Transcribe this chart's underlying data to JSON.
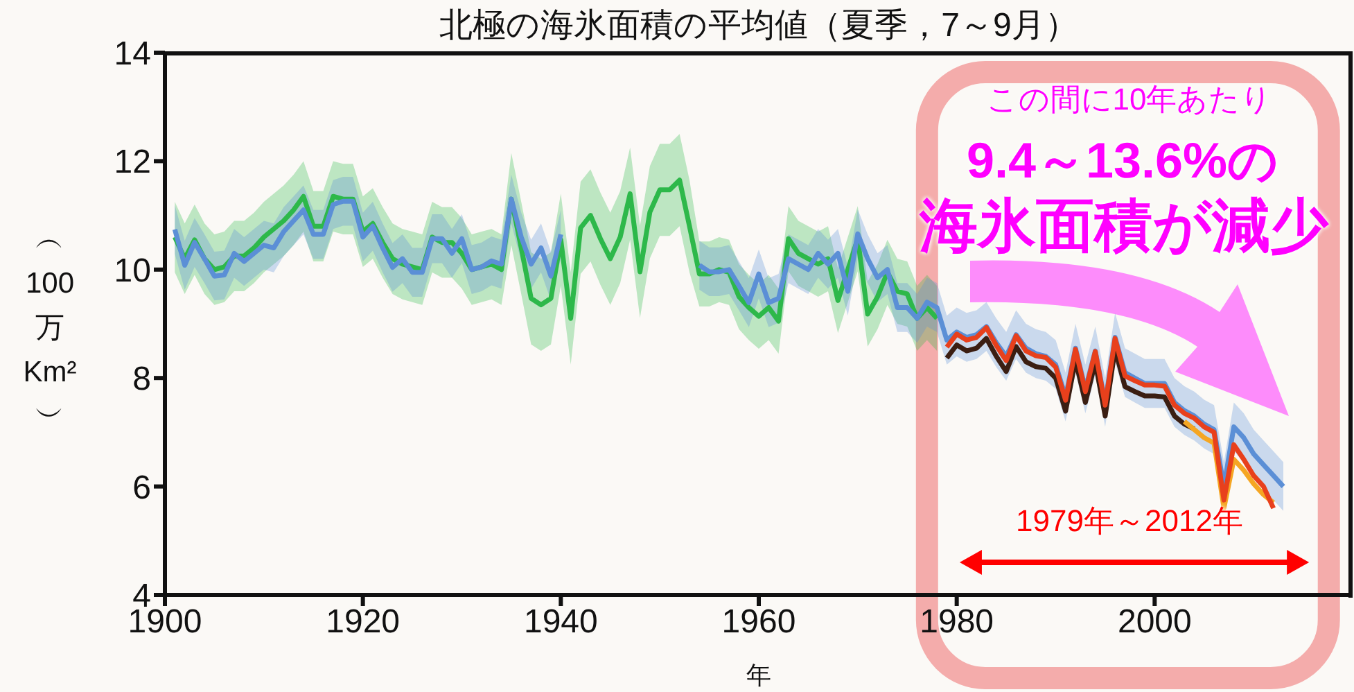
{
  "chart_data": {
    "type": "line",
    "title": "北極の海氷面積の平均値（夏季，7～9月）",
    "xlabel": "年",
    "ylabel": "︵100万Km²︶",
    "xlim": [
      1900,
      2020
    ],
    "xticks": [
      1900,
      1920,
      1940,
      1960,
      1980,
      2000
    ],
    "ylim": [
      4,
      14
    ],
    "yticks": [
      4,
      6,
      8,
      10,
      12,
      14
    ],
    "annotations": [
      "この間に10年あたり",
      "9.4～13.6%の",
      "海氷面積が減少",
      "1979年～2012年"
    ],
    "x": [
      1901,
      1902,
      1903,
      1904,
      1905,
      1906,
      1907,
      1908,
      1909,
      1910,
      1911,
      1912,
      1913,
      1914,
      1915,
      1916,
      1917,
      1918,
      1919,
      1920,
      1921,
      1922,
      1923,
      1924,
      1925,
      1926,
      1927,
      1928,
      1929,
      1930,
      1931,
      1932,
      1933,
      1934,
      1935,
      1936,
      1937,
      1938,
      1939,
      1940,
      1941,
      1942,
      1943,
      1944,
      1945,
      1946,
      1947,
      1948,
      1949,
      1950,
      1951,
      1952,
      1953,
      1954,
      1955,
      1956,
      1957,
      1958,
      1959,
      1960,
      1961,
      1962,
      1963,
      1964,
      1965,
      1966,
      1967,
      1968,
      1969,
      1970,
      1971,
      1972,
      1973,
      1974,
      1975,
      1976,
      1977,
      1978,
      1979,
      1980,
      1981,
      1982,
      1983,
      1984,
      1985,
      1986,
      1987,
      1988,
      1989,
      1990,
      1991,
      1992,
      1993,
      1994,
      1995,
      1996,
      1997,
      1998,
      1999,
      2000,
      2001,
      2002,
      2003,
      2004,
      2005,
      2006,
      2007,
      2008,
      2009,
      2010,
      2011,
      2012,
      2013
    ],
    "series": [
      {
        "color": "#2db84a",
        "values": [
          10.6,
          10.2,
          10.55,
          10.2,
          10.0,
          10.05,
          10.25,
          10.25,
          10.4,
          10.6,
          10.75,
          10.9,
          11.1,
          11.35,
          10.8,
          10.8,
          11.35,
          11.3,
          11.3,
          10.7,
          10.85,
          10.5,
          10.2,
          10.1,
          10.05,
          10.0,
          10.6,
          10.5,
          10.5,
          10.3,
          10.0,
          10.05,
          10.1,
          10.0,
          11.3,
          10.4,
          9.47,
          9.35,
          9.47,
          10.55,
          9.1,
          10.77,
          11.0,
          10.57,
          10.2,
          10.6,
          11.4,
          9.96,
          11.06,
          11.47,
          11.47,
          11.65,
          10.8,
          9.92,
          9.92,
          10.0,
          9.95,
          9.5,
          9.3,
          9.14,
          9.3,
          9.05,
          10.57,
          10.3,
          10.2,
          10.1,
          10.2,
          9.43,
          10.0,
          10.57,
          9.18,
          9.5,
          9.95,
          9.6,
          9.55,
          9.1,
          9.3,
          9.1,
          null,
          null,
          null,
          null,
          null,
          null,
          null,
          null,
          null,
          null,
          null,
          null,
          null,
          null,
          null,
          null,
          null,
          null,
          null,
          null,
          null,
          null,
          null,
          null,
          null,
          null,
          null,
          null,
          null,
          null,
          null,
          null,
          null,
          null,
          null
        ],
        "lower": [
          9.95,
          9.55,
          9.9,
          9.55,
          9.35,
          9.4,
          9.6,
          9.6,
          9.75,
          9.95,
          10.1,
          10.25,
          10.45,
          10.7,
          10.15,
          10.15,
          10.7,
          10.65,
          10.65,
          10.05,
          10.2,
          9.85,
          9.55,
          9.45,
          9.4,
          9.35,
          9.95,
          9.85,
          9.85,
          9.65,
          9.35,
          9.4,
          9.45,
          9.35,
          10.45,
          9.55,
          8.62,
          8.5,
          8.62,
          9.7,
          8.25,
          9.92,
          10.15,
          9.72,
          9.35,
          9.75,
          10.55,
          9.11,
          10.21,
          10.62,
          10.62,
          10.8,
          9.95,
          9.32,
          9.32,
          9.4,
          9.35,
          8.9,
          8.7,
          8.54,
          8.7,
          8.45,
          9.97,
          9.7,
          9.6,
          9.5,
          9.6,
          8.83,
          9.4,
          9.97,
          8.58,
          8.9,
          9.35,
          9.0,
          8.95,
          8.5,
          8.7,
          8.5,
          null,
          null,
          null,
          null,
          null,
          null,
          null,
          null,
          null,
          null,
          null,
          null,
          null,
          null,
          null,
          null,
          null,
          null,
          null,
          null,
          null,
          null,
          null,
          null,
          null,
          null,
          null,
          null,
          null,
          null,
          null,
          null,
          null,
          null,
          null
        ],
        "upper": [
          11.25,
          10.85,
          11.2,
          10.85,
          10.65,
          10.7,
          10.9,
          10.9,
          11.05,
          11.25,
          11.4,
          11.55,
          11.75,
          12.0,
          11.45,
          11.45,
          12.0,
          11.95,
          11.95,
          11.35,
          11.5,
          11.15,
          10.85,
          10.75,
          10.7,
          10.65,
          11.25,
          11.15,
          11.15,
          10.95,
          10.65,
          10.7,
          10.75,
          10.65,
          12.15,
          11.25,
          10.32,
          10.2,
          10.32,
          11.4,
          9.95,
          11.62,
          11.85,
          11.42,
          11.05,
          11.45,
          12.25,
          10.81,
          11.91,
          12.32,
          12.32,
          12.5,
          11.65,
          10.52,
          10.52,
          10.6,
          10.55,
          10.1,
          9.9,
          9.74,
          9.9,
          9.65,
          11.17,
          10.9,
          10.8,
          10.7,
          10.8,
          10.03,
          10.6,
          11.17,
          9.78,
          10.1,
          10.55,
          10.2,
          10.15,
          9.7,
          9.9,
          9.7,
          null,
          null,
          null,
          null,
          null,
          null,
          null,
          null,
          null,
          null,
          null,
          null,
          null,
          null,
          null,
          null,
          null,
          null,
          null,
          null,
          null,
          null,
          null,
          null,
          null,
          null,
          null,
          null,
          null,
          null,
          null,
          null,
          null,
          null,
          null
        ]
      },
      {
        "color": "#5b8fd6",
        "values": [
          10.74,
          10.08,
          10.5,
          10.2,
          9.88,
          9.9,
          10.3,
          10.15,
          10.3,
          10.45,
          10.4,
          10.7,
          10.9,
          11.1,
          10.65,
          10.65,
          11.2,
          11.26,
          11.26,
          10.6,
          10.8,
          10.4,
          10.04,
          10.2,
          9.95,
          9.95,
          10.57,
          10.57,
          10.3,
          10.57,
          10.0,
          10.05,
          10.16,
          10.1,
          11.3,
          10.6,
          10.1,
          10.4,
          9.88,
          10.65,
          null,
          null,
          null,
          null,
          null,
          null,
          null,
          null,
          null,
          null,
          null,
          null,
          null,
          10.08,
          9.96,
          9.96,
          10.0,
          9.7,
          9.39,
          9.92,
          9.39,
          9.47,
          10.2,
          10.1,
          10.0,
          10.3,
          10.1,
          10.3,
          9.6,
          10.66,
          10.2,
          9.85,
          10.0,
          9.3,
          9.3,
          9.1,
          9.4,
          9.3,
          8.7,
          8.85,
          8.75,
          8.8,
          8.95,
          8.65,
          8.4,
          8.8,
          8.55,
          8.45,
          8.4,
          8.25,
          7.65,
          8.55,
          7.8,
          8.5,
          7.55,
          8.75,
          8.1,
          8.0,
          7.9,
          7.9,
          7.9,
          7.55,
          7.4,
          7.3,
          7.15,
          7.05,
          6.0,
          7.1,
          6.9,
          6.6,
          6.4,
          6.2,
          6.0
        ],
        "lower": [
          10.29,
          9.63,
          10.05,
          9.75,
          9.43,
          9.45,
          9.85,
          9.7,
          9.85,
          10.0,
          9.95,
          10.25,
          10.45,
          10.65,
          10.2,
          10.2,
          10.75,
          10.81,
          10.81,
          10.15,
          10.35,
          9.95,
          9.59,
          9.75,
          9.5,
          9.5,
          10.12,
          10.12,
          9.85,
          10.12,
          9.55,
          9.6,
          9.71,
          9.65,
          10.85,
          10.15,
          9.65,
          9.95,
          9.43,
          10.2,
          null,
          null,
          null,
          null,
          null,
          null,
          null,
          null,
          null,
          null,
          null,
          null,
          null,
          9.63,
          9.51,
          9.51,
          9.55,
          9.25,
          8.94,
          9.47,
          8.94,
          9.02,
          9.75,
          9.65,
          9.55,
          9.85,
          9.65,
          9.85,
          9.15,
          10.21,
          9.75,
          9.4,
          9.55,
          8.85,
          8.85,
          8.65,
          8.95,
          8.85,
          8.25,
          8.4,
          8.3,
          8.35,
          8.5,
          8.2,
          7.95,
          8.35,
          8.1,
          8.0,
          7.95,
          7.8,
          7.2,
          8.1,
          7.35,
          8.05,
          7.1,
          8.3,
          7.65,
          7.55,
          7.45,
          7.45,
          7.45,
          7.1,
          6.95,
          6.85,
          6.7,
          6.6,
          5.55,
          6.65,
          6.45,
          6.15,
          5.95,
          5.75,
          5.55
        ],
        "upper": [
          11.19,
          10.53,
          10.95,
          10.65,
          10.33,
          10.35,
          10.75,
          10.6,
          10.75,
          10.9,
          10.85,
          11.15,
          11.35,
          11.55,
          11.1,
          11.1,
          11.65,
          11.71,
          11.71,
          11.05,
          11.25,
          10.85,
          10.49,
          10.65,
          10.4,
          10.4,
          11.02,
          11.02,
          10.75,
          11.02,
          10.45,
          10.5,
          10.61,
          10.55,
          11.75,
          11.05,
          10.55,
          10.85,
          10.33,
          11.1,
          null,
          null,
          null,
          null,
          null,
          null,
          null,
          null,
          null,
          null,
          null,
          null,
          null,
          10.53,
          10.41,
          10.41,
          10.45,
          10.15,
          9.84,
          10.37,
          9.84,
          9.92,
          10.65,
          10.55,
          10.45,
          10.75,
          10.55,
          10.75,
          10.05,
          11.11,
          10.65,
          10.3,
          10.45,
          9.75,
          9.75,
          9.55,
          9.85,
          9.75,
          9.15,
          9.3,
          9.2,
          9.25,
          9.4,
          9.1,
          8.85,
          9.25,
          9.0,
          8.9,
          8.85,
          8.7,
          8.1,
          9.0,
          8.25,
          8.95,
          8.0,
          9.2,
          8.55,
          8.45,
          8.35,
          8.35,
          8.35,
          8.0,
          7.85,
          7.75,
          7.6,
          7.5,
          6.45,
          7.55,
          7.35,
          7.05,
          6.85,
          6.65,
          6.45
        ]
      },
      {
        "color": "#3b1e12",
        "values": [
          null,
          null,
          null,
          null,
          null,
          null,
          null,
          null,
          null,
          null,
          null,
          null,
          null,
          null,
          null,
          null,
          null,
          null,
          null,
          null,
          null,
          null,
          null,
          null,
          null,
          null,
          null,
          null,
          null,
          null,
          null,
          null,
          null,
          null,
          null,
          null,
          null,
          null,
          null,
          null,
          null,
          null,
          null,
          null,
          null,
          null,
          null,
          null,
          null,
          null,
          null,
          null,
          null,
          null,
          null,
          null,
          null,
          null,
          null,
          null,
          null,
          null,
          null,
          null,
          null,
          null,
          null,
          null,
          null,
          null,
          null,
          null,
          null,
          null,
          null,
          null,
          null,
          null,
          8.37,
          8.61,
          8.5,
          8.55,
          8.73,
          8.4,
          8.12,
          8.58,
          8.3,
          8.21,
          8.18,
          8.0,
          7.39,
          8.33,
          7.55,
          8.29,
          7.3,
          8.53,
          7.84,
          7.75,
          7.67,
          7.67,
          7.65,
          7.3,
          7.15,
          7.06,
          null,
          null,
          null,
          null,
          null,
          null,
          null,
          null,
          null
        ]
      },
      {
        "color": "#f5a623",
        "values": [
          null,
          null,
          null,
          null,
          null,
          null,
          null,
          null,
          null,
          null,
          null,
          null,
          null,
          null,
          null,
          null,
          null,
          null,
          null,
          null,
          null,
          null,
          null,
          null,
          null,
          null,
          null,
          null,
          null,
          null,
          null,
          null,
          null,
          null,
          null,
          null,
          null,
          null,
          null,
          null,
          null,
          null,
          null,
          null,
          null,
          null,
          null,
          null,
          null,
          null,
          null,
          null,
          null,
          null,
          null,
          null,
          null,
          null,
          null,
          null,
          null,
          null,
          null,
          null,
          null,
          null,
          null,
          null,
          null,
          null,
          null,
          null,
          null,
          null,
          null,
          null,
          null,
          null,
          null,
          null,
          null,
          null,
          null,
          null,
          null,
          null,
          null,
          null,
          null,
          null,
          null,
          null,
          null,
          null,
          null,
          null,
          null,
          null,
          null,
          null,
          null,
          null,
          7.2,
          7.05,
          6.9,
          6.8,
          5.6,
          6.5,
          6.3,
          6.05,
          5.85,
          5.7,
          null
        ]
      },
      {
        "color": "#e8401c",
        "values": [
          null,
          null,
          null,
          null,
          null,
          null,
          null,
          null,
          null,
          null,
          null,
          null,
          null,
          null,
          null,
          null,
          null,
          null,
          null,
          null,
          null,
          null,
          null,
          null,
          null,
          null,
          null,
          null,
          null,
          null,
          null,
          null,
          null,
          null,
          null,
          null,
          null,
          null,
          null,
          null,
          null,
          null,
          null,
          null,
          null,
          null,
          null,
          null,
          null,
          null,
          null,
          null,
          null,
          null,
          null,
          null,
          null,
          null,
          null,
          null,
          null,
          null,
          null,
          null,
          null,
          null,
          null,
          null,
          null,
          null,
          null,
          null,
          null,
          null,
          null,
          null,
          null,
          null,
          8.57,
          8.81,
          8.7,
          8.75,
          8.93,
          8.6,
          8.32,
          8.78,
          8.5,
          8.41,
          8.38,
          8.2,
          7.59,
          8.53,
          7.75,
          8.49,
          7.5,
          8.73,
          8.04,
          7.95,
          7.87,
          7.87,
          7.85,
          7.5,
          7.35,
          7.26,
          7.1,
          7.0,
          5.75,
          6.77,
          6.5,
          6.2,
          6.0,
          5.6,
          null
        ]
      }
    ]
  }
}
